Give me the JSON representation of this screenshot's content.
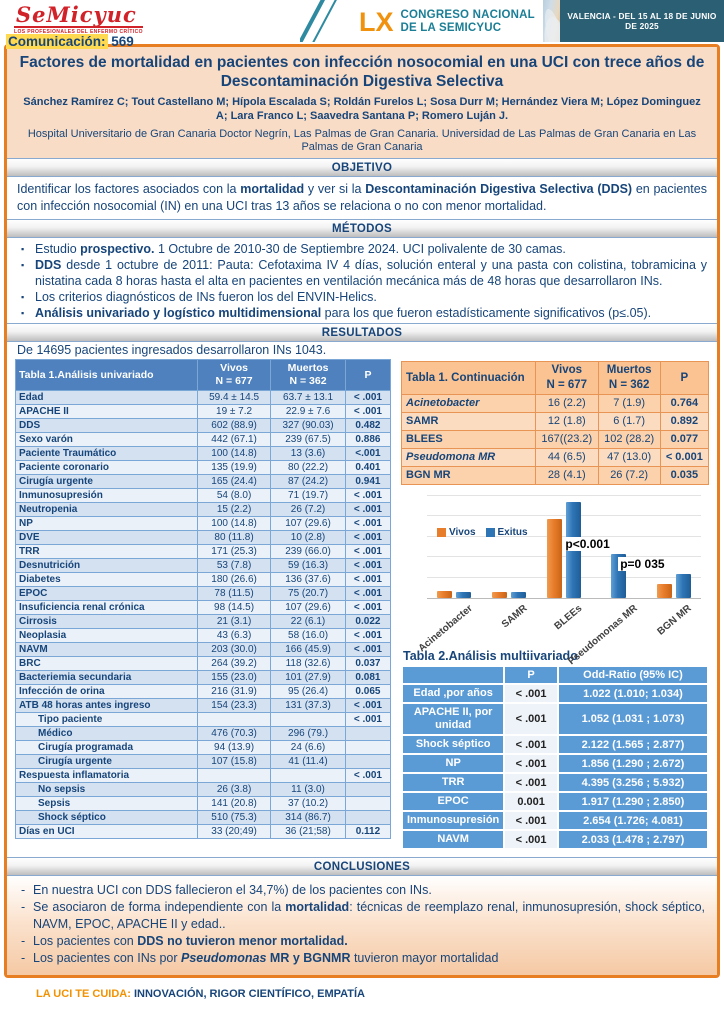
{
  "header": {
    "logo_title": "SeMicyuc",
    "logo_tagline": "LOS PROFESIONALES DEL ENFERMO CRÍTICO",
    "congress_number": "LX",
    "congress_line1": "CONGRESO NACIONAL",
    "congress_line2": "DE LA SEMICYUC",
    "venue": "VALENCIA - DEL 15 AL 18 DE JUNIO DE 2025",
    "communication_label": "Comunicación:",
    "communication_number": "569"
  },
  "title_block": {
    "title": "Factores de mortalidad en pacientes con infección nosocomial en una UCI con trece años de Descontaminación Digestiva Selectiva",
    "authors": "Sánchez Ramírez C; Tout Castellano M; Hípola Escalada S; Roldán Furelos L; Sosa Durr M; Hernández Viera M; López Dominguez A; Lara Franco L; Saavedra Santana P; Romero Luján J.",
    "affiliation": "Hospital Universitario de Gran Canaria Doctor Negrín, Las Palmas de Gran Canaria. Universidad de Las Palmas de Gran Canaria en Las Palmas de Gran Canaria"
  },
  "sections": {
    "objetivo": {
      "heading": "OBJETIVO",
      "segments": [
        {
          "t": "Identificar los factores asociados con la "
        },
        {
          "t": "mortalidad",
          "b": 1
        },
        {
          "t": " y ver si la "
        },
        {
          "t": "Descontaminación Digestiva Selectiva (DDS)",
          "b": 1
        },
        {
          "t": " en pacientes con infección nosocomial (IN) en una UCI tras 13 años se relaciona o no con menor mortalidad."
        }
      ]
    },
    "metodos": {
      "heading": "MÉTODOS",
      "bullets": [
        [
          {
            "t": "Estudio "
          },
          {
            "t": "prospectivo.",
            "b": 1
          },
          {
            "t": " 1 Octubre de 2010-30 de Septiembre 2024. UCI polivalente de 30 camas."
          }
        ],
        [
          {
            "t": "DDS",
            "b": 1
          },
          {
            "t": " desde 1 octubre de 2011: Pauta: Cefotaxima IV 4 días, solución enteral y una pasta con colistina, tobramicina y nistatina cada 8 horas hasta el alta en pacientes en ventilación mecánica más de 48 horas que desarrollaron INs."
          }
        ],
        [
          {
            "t": "Los criterios diagnósticos de INs fueron los del ENVIN-Helics."
          }
        ],
        [
          {
            "t": "Análisis univariado y logístico multidimensional",
            "b": 1
          },
          {
            "t": " para los que fueron estadísticamente significativos (p≤.05)."
          }
        ]
      ]
    },
    "resultados": {
      "heading": "RESULTADOS",
      "intro": "De 14695 pacientes ingresados desarrollaron INs 1043."
    },
    "conclusiones": {
      "heading": "CONCLUSIONES",
      "bullets": [
        [
          {
            "t": "En nuestra UCI con DDS fallecieron el 34,7%) de los pacientes con INs."
          }
        ],
        [
          {
            "t": "Se asociaron de forma independiente con la "
          },
          {
            "t": "mortalidad",
            "b": 1
          },
          {
            "t": ": técnicas de reemplazo renal, inmunosupresión, shock séptico, NAVM, EPOC, APACHE II y edad.."
          }
        ],
        [
          {
            "t": "Los pacientes con "
          },
          {
            "t": "DDS no tuvieron menor  mortalidad.",
            "b": 1
          }
        ],
        [
          {
            "t": "Los pacientes con INs por "
          },
          {
            "t": "Pseudomonas",
            "b": 1,
            "i": 1
          },
          {
            "t": " MR y BGNMR",
            "b": 1
          },
          {
            "t": " tuvieron mayor mortalidad"
          }
        ]
      ]
    }
  },
  "table1": {
    "caption": "Tabla 1.Análisis univariado",
    "col_headers": {
      "vivos": "Vivos",
      "vivos_n": "N = 677",
      "muertos": "Muertos",
      "muertos_n": "N = 362",
      "p": "P"
    },
    "rows": [
      {
        "label": "Edad",
        "vivos": "59.4 ± 14.5",
        "muertos": "63.7 ± 13.1",
        "p": "< .001"
      },
      {
        "label": "APACHE II",
        "vivos": "19 ± 7.2",
        "muertos": "22.9 ± 7.6",
        "p": "< .001"
      },
      {
        "label": "DDS",
        "vivos": "602 (88.9)",
        "muertos": "327 (90.03)",
        "p": "0.482"
      },
      {
        "label": "Sexo varón",
        "vivos": "442 (67.1)",
        "muertos": "239 (67.5)",
        "p": "0.886"
      },
      {
        "label": "Paciente Traumático",
        "vivos": "100 (14.8)",
        "muertos": "13 (3.6)",
        "p": "<.001"
      },
      {
        "label": "Paciente coronario",
        "vivos": "135 (19.9)",
        "muertos": "80 (22.2)",
        "p": "0.401"
      },
      {
        "label": "Cirugía urgente",
        "vivos": "165 (24.4)",
        "muertos": "87 (24.2)",
        "p": "0.941"
      },
      {
        "label": "Inmunosupresión",
        "vivos": "54 (8.0)",
        "muertos": "71 (19.7)",
        "p": "< .001"
      },
      {
        "label": "Neutropenia",
        "vivos": "15 (2.2)",
        "muertos": "26 (7.2)",
        "p": "< .001"
      },
      {
        "label": "NP",
        "vivos": "100 (14.8)",
        "muertos": "107 (29.6)",
        "p": "< .001"
      },
      {
        "label": "DVE",
        "vivos": "80 (11.8)",
        "muertos": "10 (2.8)",
        "p": "< .001"
      },
      {
        "label": "TRR",
        "vivos": "171 (25.3)",
        "muertos": "239 (66.0)",
        "p": "< .001"
      },
      {
        "label": "Desnutrición",
        "vivos": "53 (7.8)",
        "muertos": "59 (16.3)",
        "p": "< .001"
      },
      {
        "label": "Diabetes",
        "vivos": "180 (26.6)",
        "muertos": "136 (37.6)",
        "p": "< .001"
      },
      {
        "label": "EPOC",
        "vivos": "78 (11.5)",
        "muertos": "75 (20.7)",
        "p": "< .001"
      },
      {
        "label": "Insuficiencia renal crónica",
        "vivos": "98 (14.5)",
        "muertos": "107 (29.6)",
        "p": "< .001"
      },
      {
        "label": "Cirrosis",
        "vivos": "21 (3.1)",
        "muertos": "22 (6.1)",
        "p": "0.022"
      },
      {
        "label": "Neoplasia",
        "vivos": "43 (6.3)",
        "muertos": "58 (16.0)",
        "p": "< .001"
      },
      {
        "label": "NAVM",
        "vivos": "203 (30.0)",
        "muertos": "166 (45.9)",
        "p": "< .001"
      },
      {
        "label": "BRC",
        "vivos": "264 (39.2)",
        "muertos": "118 (32.6)",
        "p": "0.037"
      },
      {
        "label": "Bacteriemia secundaria",
        "vivos": "155 (23.0)",
        "muertos": "101 (27.9)",
        "p": "0.081"
      },
      {
        "label": "Infección de orina",
        "vivos": "216 (31.9)",
        "muertos": "95 (26.4)",
        "p": "0.065"
      },
      {
        "label": "ATB 48 horas antes ingreso",
        "vivos": "154 (23.3)",
        "muertos": "131 (37.3)",
        "p": "< .001"
      },
      {
        "label": "Tipo paciente",
        "vivos": "",
        "muertos": "",
        "p": "< .001",
        "indent": 1
      },
      {
        "label": "Médico",
        "vivos": "476 (70.3)",
        "muertos": "296 (79.)",
        "p": "",
        "indent": 1
      },
      {
        "label": "Cirugía programada",
        "vivos": "94 (13.9)",
        "muertos": "24 (6.6)",
        "p": "",
        "indent": 1
      },
      {
        "label": "Cirugía urgente",
        "vivos": "107 (15.8)",
        "muertos": "41 (11.4)",
        "p": "",
        "indent": 1
      },
      {
        "label": "Respuesta inflamatoria",
        "vivos": "",
        "muertos": "",
        "p": "< .001"
      },
      {
        "label": "No sepsis",
        "vivos": "26 (3.8)",
        "muertos": "11 (3.0)",
        "p": "",
        "indent": 1
      },
      {
        "label": "Sepsis",
        "vivos": "141 (20.8)",
        "muertos": "37 (10.2)",
        "p": "",
        "indent": 1
      },
      {
        "label": "Shock séptico",
        "vivos": "510 (75.3)",
        "muertos": "314 (86.7)",
        "p": "",
        "indent": 1
      },
      {
        "label": "Días en UCI",
        "vivos": "33 (20;49)",
        "muertos": "36 (21;58)",
        "p": "0.112"
      }
    ]
  },
  "table1_cont": {
    "caption": "Tabla 1. Continuación",
    "col_headers": {
      "vivos": "Vivos",
      "vivos_n": "N = 677",
      "muertos": "Muertos",
      "muertos_n": "N = 362",
      "p": "P"
    },
    "rows": [
      {
        "label": "Acinetobacter",
        "vivos": "16 (2.2)",
        "muertos": "7 (1.9)",
        "p": "0.764",
        "italic": 1
      },
      {
        "label": "SAMR",
        "vivos": "12 (1.8)",
        "muertos": "6 (1.7)",
        "p": "0.892"
      },
      {
        "label": "BLEES",
        "vivos": "167((23.2)",
        "muertos": "102 (28.2)",
        "p": "0.077"
      },
      {
        "label": "Pseudomona MR",
        "vivos": "44 (6.5)",
        "muertos": "47 (13.0)",
        "p": "< 0.001",
        "italic": 1
      },
      {
        "label": "BGN MR",
        "vivos": "28 (4.1)",
        "muertos": "26 (7.2)",
        "p": "0.035"
      }
    ]
  },
  "chart_data": {
    "type": "bar",
    "categories": [
      "Acinetobacter",
      "SAMR",
      "BLEEs",
      "Pseudomonas MR",
      "BGN MR"
    ],
    "series": [
      {
        "name": "Vivos",
        "color": "#e87d2c",
        "values": [
          2.2,
          1.8,
          23.2,
          null,
          4.1
        ]
      },
      {
        "name": "Exitus",
        "color": "#2e75b6",
        "values": [
          1.9,
          1.7,
          28.2,
          13.0,
          7.2
        ]
      }
    ],
    "annotations": [
      {
        "text": "p<0.001",
        "category_index": 3
      },
      {
        "text": "p=0 035",
        "category_index": 4
      }
    ],
    "title": "",
    "xlabel": "",
    "ylabel": "",
    "ylim": [
      0,
      30
    ],
    "grid": true,
    "legend_position": "top-left",
    "note": "values are % from Tabla 1 Continuación; Vivos bar for Pseudomonas MR is hidden behind annotation in source"
  },
  "table2": {
    "caption": "Tabla 2.Análisis multiivariado",
    "col_headers": {
      "p": "P",
      "or": "Odd-Ratio (95% IC)"
    },
    "rows": [
      {
        "label": "Edad ,por años",
        "p": "< .001",
        "or": "1.022 (1.010; 1.034)"
      },
      {
        "label": "APACHE II, por unidad",
        "p": "< .001",
        "or": "1.052 (1.031 ; 1.073)"
      },
      {
        "label": "Shock séptico",
        "p": "< .001",
        "or": "2.122 (1.565 ; 2.877)"
      },
      {
        "label": "NP",
        "p": "< .001",
        "or": "1.856 (1.290 ; 2.672)"
      },
      {
        "label": "TRR",
        "p": "< .001",
        "or": "4.395 (3.256 ; 5.932)"
      },
      {
        "label": "EPOC",
        "p": "0.001",
        "or": "1.917 (1.290 ; 2.850)"
      },
      {
        "label": "Inmunosupresión",
        "p": "< .001",
        "or": "2.654 (1.726; 4.081)"
      },
      {
        "label": "NAVM",
        "p": "< .001",
        "or": "2.033 (1.478 ; 2.797)"
      }
    ]
  },
  "footer": {
    "slogan_lead": "LA UCI TE CUIDA:",
    "slogan_rest": " INNOVACIÓN, RIGOR CIENTÍFICO, EMPATÍA"
  },
  "colors": {
    "accent_orange": "#e87e22",
    "dark_blue": "#17457a",
    "table_header_blue": "#4e81bd",
    "table2_blue": "#5b9bd5",
    "teal": "#2b5f74",
    "bar_vivos": "#e87d2c",
    "bar_exitus": "#2e75b6"
  }
}
